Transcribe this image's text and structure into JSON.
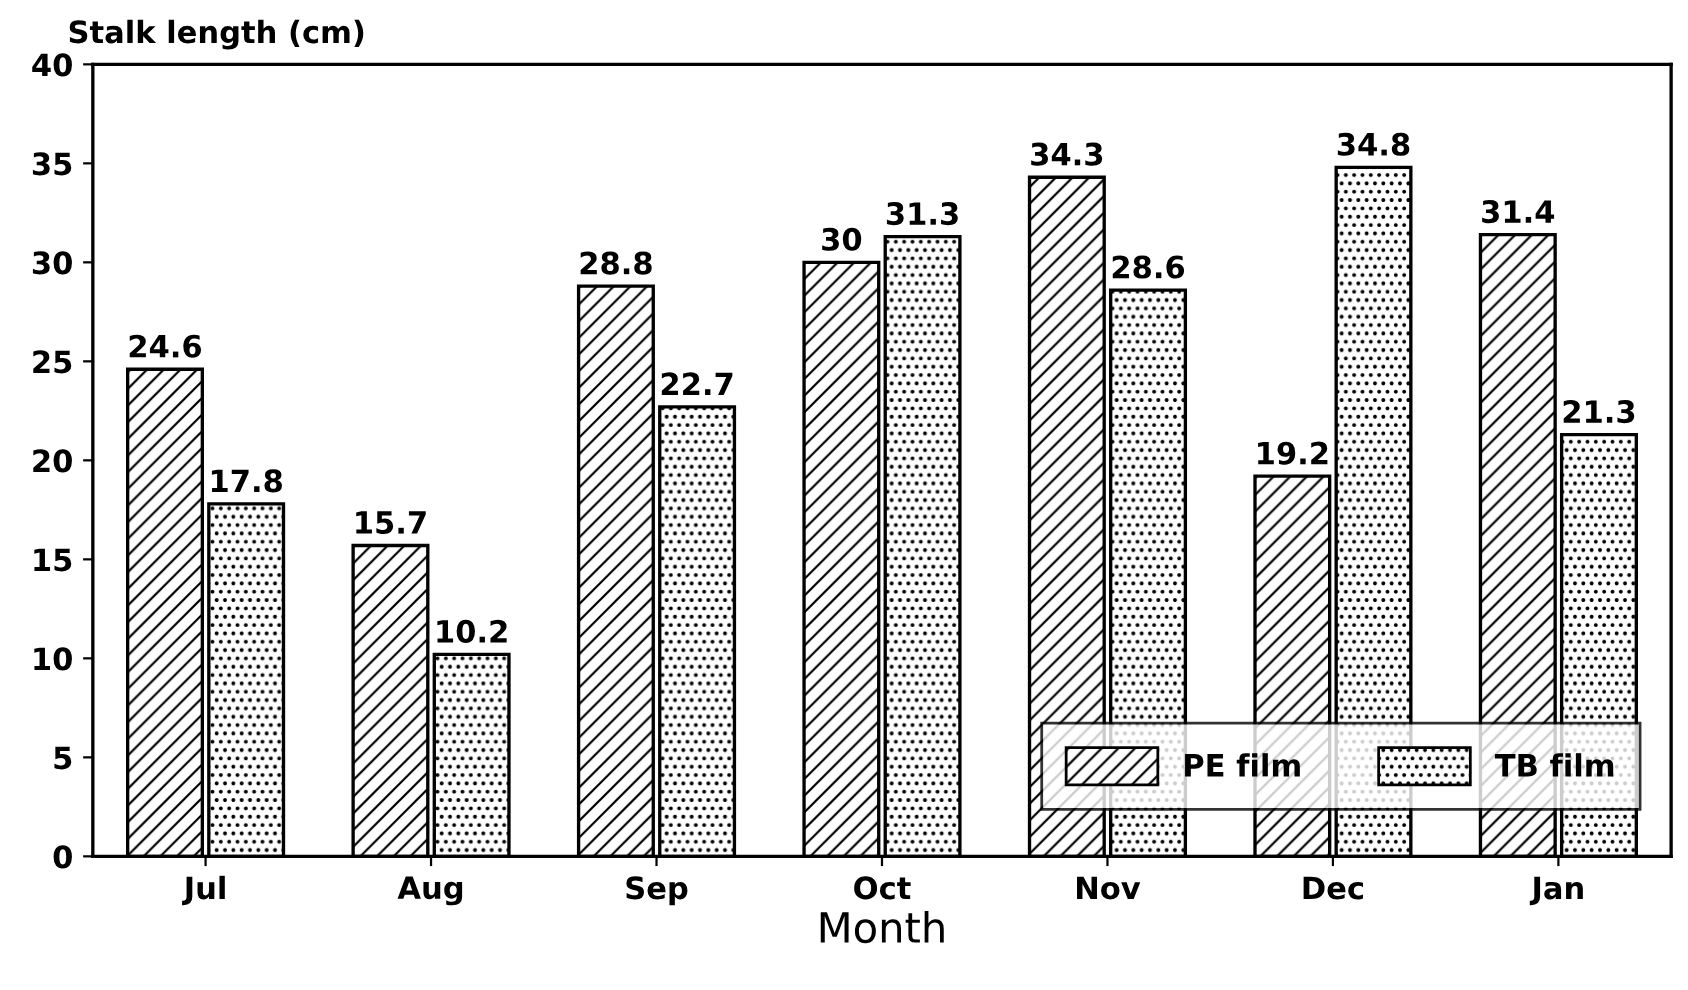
{
  "chart_data": {
    "type": "bar",
    "ylabel": "Stalk length (cm)",
    "xlabel": "Month",
    "categories": [
      "Jul",
      "Aug",
      "Sep",
      "Oct",
      "Nov",
      "Dec",
      "Jan"
    ],
    "series": [
      {
        "name": "PE film",
        "color": "#000000",
        "values": [
          24.6,
          15.7,
          28.8,
          30,
          34.3,
          19.2,
          31.4
        ]
      },
      {
        "name": "TB film",
        "color": "#000000",
        "values": [
          17.8,
          10.2,
          22.7,
          31.3,
          28.6,
          34.8,
          21.3
        ]
      }
    ],
    "ylim": [
      0,
      40
    ],
    "yticks": [
      0,
      5,
      10,
      15,
      20,
      25,
      30,
      35,
      40
    ],
    "data_labels": true,
    "legend": "bottom right",
    "grid": false
  }
}
